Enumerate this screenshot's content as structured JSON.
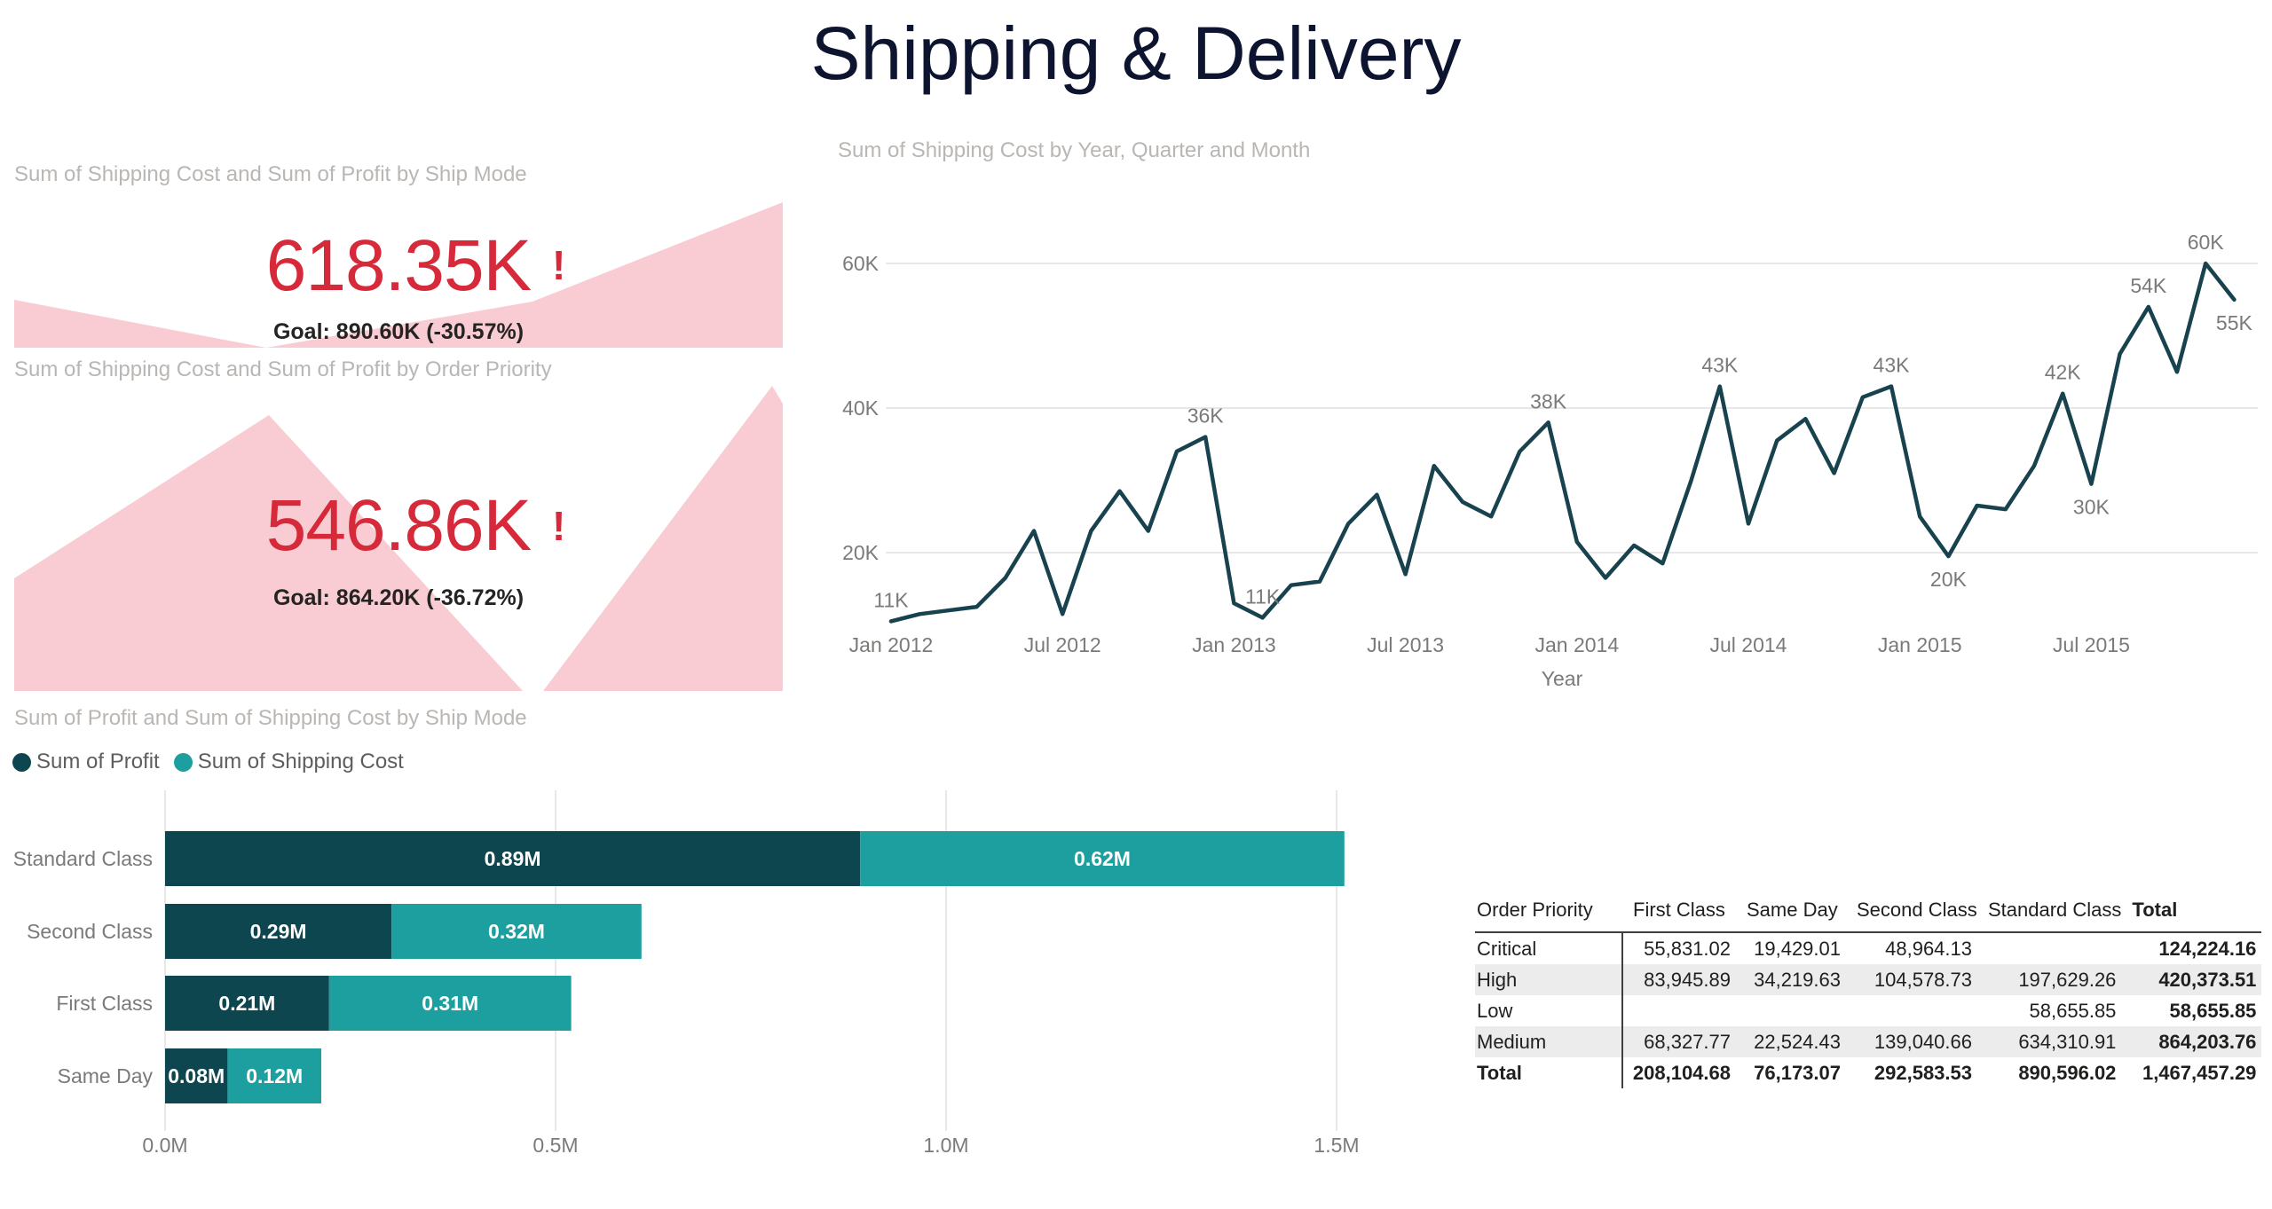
{
  "page": {
    "title": "Shipping & Delivery"
  },
  "colors": {
    "dark_teal": "#0e4650",
    "teal": "#1d9fa0",
    "alert_red": "#d62939",
    "alert_pink": "#f8ccd2",
    "gridline": "#e8e8e8",
    "axis_text": "#7c7a78",
    "title_navy": "#0d1430",
    "visual_title_gray": "#b9b6b3"
  },
  "kpi1": {
    "title": "Sum of Shipping Cost and Sum of Profit by Ship Mode",
    "value": "618.35K",
    "alert": "!",
    "goal": "Goal: 890.60K (-30.57%)"
  },
  "kpi2": {
    "title": "Sum of Shipping Cost and Sum of Profit by Order Priority",
    "value": "546.86K",
    "alert": "!",
    "goal": "Goal: 864.20K (-36.72%)"
  },
  "chart_data": [
    {
      "id": "line-shipping-cost-by-month",
      "type": "line",
      "title": "Sum of Shipping Cost by Year, Quarter and Month",
      "xlabel": "Year",
      "unit": "K",
      "grid": "horizontal",
      "legend_position": "none",
      "ylim": [
        0,
        65
      ],
      "x": [
        "Jan 2012",
        "Feb 2012",
        "Mar 2012",
        "Apr 2012",
        "May 2012",
        "Jun 2012",
        "Jul 2012",
        "Aug 2012",
        "Sep 2012",
        "Oct 2012",
        "Nov 2012",
        "Dec 2012",
        "Jan 2013",
        "Feb 2013",
        "Mar 2013",
        "Apr 2013",
        "May 2013",
        "Jun 2013",
        "Jul 2013",
        "Aug 2013",
        "Sep 2013",
        "Oct 2013",
        "Nov 2013",
        "Dec 2013",
        "Jan 2014",
        "Feb 2014",
        "Mar 2014",
        "Apr 2014",
        "May 2014",
        "Jun 2014",
        "Jul 2014",
        "Aug 2014",
        "Sep 2014",
        "Oct 2014",
        "Nov 2014",
        "Dec 2014",
        "Jan 2015",
        "Feb 2015",
        "Mar 2015",
        "Apr 2015",
        "May 2015",
        "Jun 2015",
        "Jul 2015",
        "Aug 2015",
        "Sep 2015",
        "Oct 2015",
        "Nov 2015",
        "Dec 2015"
      ],
      "values": [
        10.5,
        11.5,
        12,
        12.5,
        16.5,
        23,
        11.5,
        23,
        28.5,
        23,
        34,
        36,
        13,
        11,
        15.5,
        16,
        24,
        28,
        17,
        32,
        27,
        25,
        34,
        38,
        21.5,
        16.5,
        21,
        18.5,
        30,
        43,
        24,
        35.5,
        38.5,
        31,
        41.5,
        43,
        25,
        19.5,
        26.5,
        26,
        32,
        42,
        29.5,
        47.5,
        54,
        45,
        60,
        55
      ],
      "x_ticks": [
        {
          "index": 0,
          "label": "Jan 2012"
        },
        {
          "index": 6,
          "label": "Jul 2012"
        },
        {
          "index": 12,
          "label": "Jan 2013"
        },
        {
          "index": 18,
          "label": "Jul 2013"
        },
        {
          "index": 24,
          "label": "Jan 2014"
        },
        {
          "index": 30,
          "label": "Jul 2014"
        },
        {
          "index": 36,
          "label": "Jan 2015"
        },
        {
          "index": 42,
          "label": "Jul 2015"
        }
      ],
      "y_ticks": [
        {
          "value": 20,
          "label": "20K"
        },
        {
          "value": 40,
          "label": "40K"
        },
        {
          "value": 60,
          "label": "60K"
        }
      ],
      "point_labels": [
        {
          "index": 0,
          "label": "11K",
          "pos": "above"
        },
        {
          "index": 11,
          "label": "36K",
          "pos": "above"
        },
        {
          "index": 13,
          "label": "11K",
          "pos": "above"
        },
        {
          "index": 23,
          "label": "38K",
          "pos": "above"
        },
        {
          "index": 29,
          "label": "43K",
          "pos": "above"
        },
        {
          "index": 35,
          "label": "43K",
          "pos": "above"
        },
        {
          "index": 37,
          "label": "20K",
          "pos": "below"
        },
        {
          "index": 41,
          "label": "42K",
          "pos": "above"
        },
        {
          "index": 42,
          "label": "30K",
          "pos": "below"
        },
        {
          "index": 44,
          "label": "54K",
          "pos": "above"
        },
        {
          "index": 46,
          "label": "60K",
          "pos": "above"
        },
        {
          "index": 47,
          "label": "55K",
          "pos": "below"
        }
      ]
    },
    {
      "id": "bar-profit-and-shipping-by-shipmode",
      "type": "bar",
      "stacked": true,
      "orientation": "horizontal",
      "title": "Sum of Profit and Sum of Shipping Cost by Ship Mode",
      "unit": "M",
      "xlim": [
        0,
        1.65
      ],
      "legend_position": "top-left",
      "categories": [
        "Standard Class",
        "Second Class",
        "First Class",
        "Same Day"
      ],
      "series": [
        {
          "name": "Sum of Profit",
          "color": "#0e4650",
          "values": [
            0.89,
            0.29,
            0.21,
            0.08
          ],
          "labels": [
            "0.89M",
            "0.29M",
            "0.21M",
            "0.08M"
          ]
        },
        {
          "name": "Sum of Shipping Cost",
          "color": "#1d9fa0",
          "values": [
            0.62,
            0.32,
            0.31,
            0.12
          ],
          "labels": [
            "0.62M",
            "0.32M",
            "0.31M",
            "0.12M"
          ]
        }
      ],
      "x_ticks": [
        {
          "value": 0,
          "label": "0.0M"
        },
        {
          "value": 0.5,
          "label": "0.5M"
        },
        {
          "value": 1.0,
          "label": "1.0M"
        },
        {
          "value": 1.5,
          "label": "1.5M"
        }
      ]
    },
    {
      "id": "matrix-shipping-cost-by-priority-and-shipmode",
      "type": "table",
      "headers": [
        "Order Priority",
        "First Class",
        "Same Day",
        "Second Class",
        "Standard Class",
        "Total"
      ],
      "rows": [
        {
          "cells": [
            "Critical",
            "55,831.02",
            "19,429.01",
            "48,964.13",
            "",
            "124,224.16"
          ]
        },
        {
          "cells": [
            "High",
            "83,945.89",
            "34,219.63",
            "104,578.73",
            "197,629.26",
            "420,373.51"
          ]
        },
        {
          "cells": [
            "Low",
            "",
            "",
            "",
            "58,655.85",
            "58,655.85"
          ]
        },
        {
          "cells": [
            "Medium",
            "68,327.77",
            "22,524.43",
            "139,040.66",
            "634,310.91",
            "864,203.76"
          ]
        },
        {
          "cells": [
            "Total",
            "208,104.68",
            "76,173.07",
            "292,583.53",
            "890,596.02",
            "1,467,457.29"
          ]
        }
      ]
    }
  ]
}
